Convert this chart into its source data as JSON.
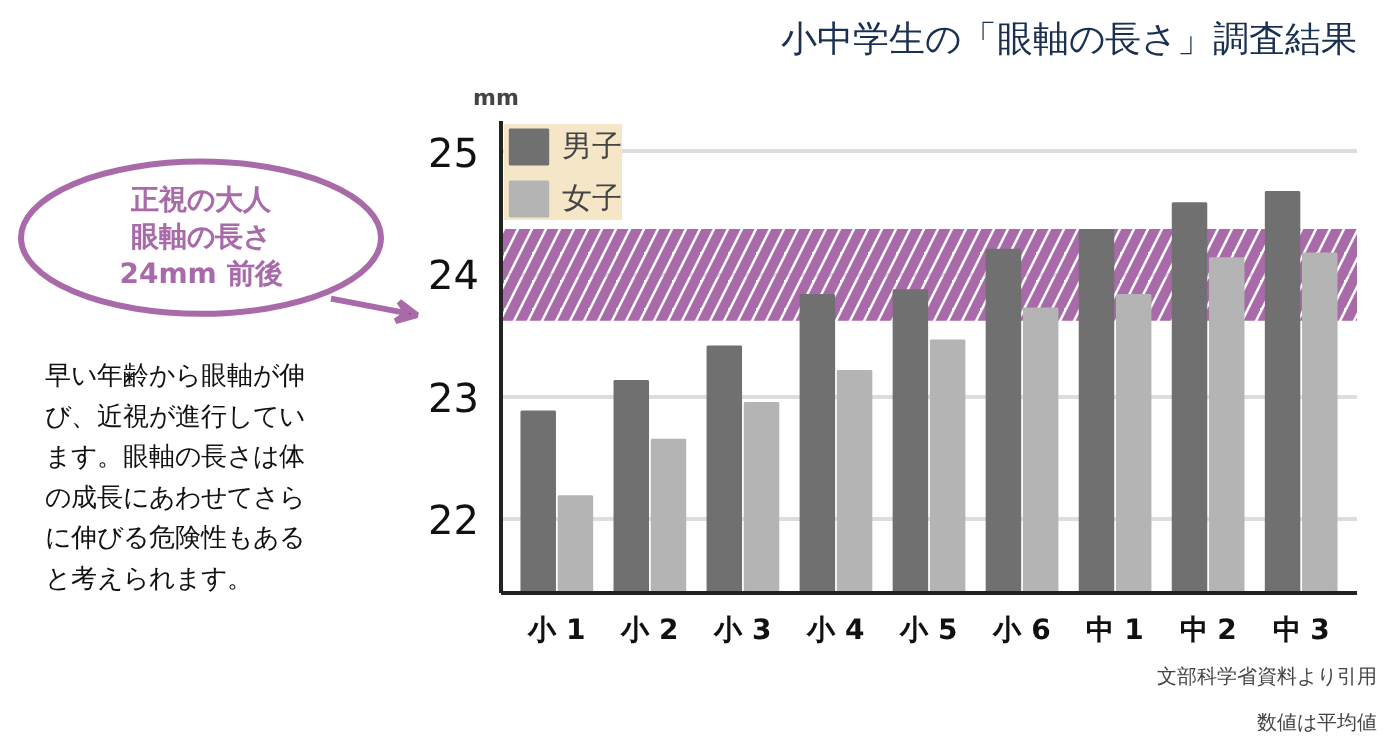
{
  "chart_data": {
    "type": "bar",
    "title": "小中学生の「眼軸の長さ」調査結果",
    "ylabel": "mm",
    "categories": [
      "小 1",
      "小 2",
      "小 3",
      "小 4",
      "小 5",
      "小 6",
      "中 1",
      "中 2",
      "中 3"
    ],
    "series": [
      {
        "name": "男子",
        "color": "#707070",
        "values": [
          22.88,
          23.13,
          23.41,
          23.83,
          23.87,
          24.2,
          24.36,
          24.58,
          24.67
        ]
      },
      {
        "name": "女子",
        "color": "#b4b4b4",
        "values": [
          22.19,
          22.65,
          22.95,
          23.21,
          23.46,
          23.72,
          23.83,
          24.13,
          24.17
        ]
      }
    ],
    "ylim": [
      21.4,
      25.25
    ],
    "yticks": [
      22,
      23,
      24,
      25
    ],
    "grid": "y",
    "legend": "top left",
    "bands": [
      {
        "axis": "y",
        "from": 23.62,
        "to": 24.37,
        "color": "#a86aa8"
      }
    ],
    "annotations": [
      "早い年齢から眼軸が伸び、近視が進行しています。眼軸の長さは体の成長にあわせてさらに伸びる危険性もあると考えられます。",
      "文部科学省資料より引用",
      "数値は平均値",
      "正視の大人眼軸の長さ24mm 前後"
    ]
  }
}
